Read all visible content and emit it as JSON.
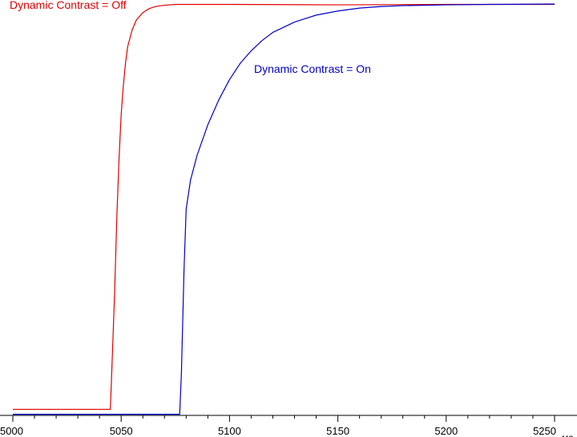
{
  "chart_data": {
    "type": "line",
    "title": "",
    "xlabel": "",
    "ylabel": "",
    "x_unit": "мс",
    "xlim": [
      5000,
      5250
    ],
    "ylim": [
      0,
      100
    ],
    "x_ticks": [
      5000,
      5050,
      5100,
      5150,
      5200,
      5250
    ],
    "x_tick_labels": [
      "5000",
      "5050",
      "5100",
      "5150",
      "5200",
      "5250"
    ],
    "minor_tick_step": 10,
    "grid": false,
    "legend": "inline labels",
    "series": [
      {
        "name": "Dynamic Contrast = Off",
        "color": "#e00000",
        "x": [
          5000,
          5045,
          5045.5,
          5047,
          5048,
          5049,
          5050,
          5051,
          5052,
          5053,
          5055,
          5057,
          5060,
          5063,
          5066,
          5070,
          5075,
          5080,
          5100,
          5150,
          5200,
          5250
        ],
        "y": [
          1.2,
          1.2,
          8,
          30,
          48,
          62,
          73,
          80,
          85.5,
          89.5,
          93.5,
          96,
          97.8,
          98.8,
          99.3,
          99.6,
          99.8,
          99.8,
          99.8,
          99.7,
          99.8,
          99.8
        ]
      },
      {
        "name": "Dynamic Contrast = On",
        "color": "#0000c8",
        "x": [
          5000,
          5077,
          5077.8,
          5079,
          5080,
          5082,
          5085,
          5090,
          5095,
          5100,
          5105,
          5110,
          5115,
          5120,
          5130,
          5140,
          5150,
          5160,
          5170,
          5180,
          5200,
          5220,
          5250
        ],
        "y": [
          0,
          0,
          10,
          35,
          50,
          57,
          63,
          70.5,
          76.5,
          81.5,
          85.5,
          88.5,
          91,
          93,
          95.5,
          97.2,
          98.2,
          98.9,
          99.3,
          99.5,
          99.7,
          99.8,
          99.9
        ]
      }
    ]
  }
}
